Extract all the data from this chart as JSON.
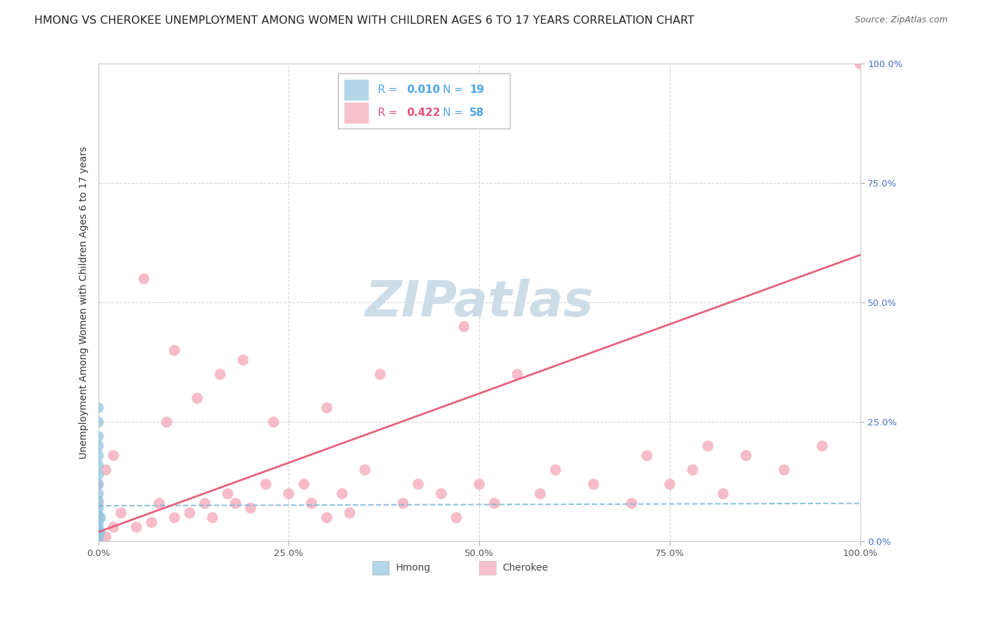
{
  "title": "HMONG VS CHEROKEE UNEMPLOYMENT AMONG WOMEN WITH CHILDREN AGES 6 TO 17 YEARS CORRELATION CHART",
  "source": "Source: ZipAtlas.com",
  "ylabel": "Unemployment Among Women with Children Ages 6 to 17 years",
  "xlim": [
    0,
    1
  ],
  "ylim": [
    0,
    1
  ],
  "xticks": [
    0.0,
    0.25,
    0.5,
    0.75,
    1.0
  ],
  "yticks": [
    0.0,
    0.25,
    0.5,
    0.75,
    1.0
  ],
  "xticklabels": [
    "0.0%",
    "25.0%",
    "50.0%",
    "75.0%",
    "100.0%"
  ],
  "yticklabels": [
    "0.0%",
    "25.0%",
    "50.0%",
    "75.0%",
    "100.0%"
  ],
  "hmong_color": "#92c5de",
  "cherokee_color": "#f4a6b8",
  "hmong_R": 0.01,
  "hmong_N": 19,
  "cherokee_R": 0.422,
  "cherokee_N": 58,
  "hmong_x": [
    0.0,
    0.0,
    0.0,
    0.0,
    0.0,
    0.0,
    0.0,
    0.0,
    0.0,
    0.0,
    0.0,
    0.0,
    0.0,
    0.0,
    0.0,
    0.0,
    0.0,
    0.002,
    0.003
  ],
  "hmong_y": [
    0.0,
    0.01,
    0.02,
    0.03,
    0.04,
    0.055,
    0.07,
    0.085,
    0.1,
    0.12,
    0.14,
    0.16,
    0.18,
    0.2,
    0.22,
    0.25,
    0.28,
    0.02,
    0.05
  ],
  "cherokee_x": [
    0.0,
    0.0,
    0.0,
    0.0,
    0.0,
    0.01,
    0.01,
    0.02,
    0.02,
    0.03,
    0.05,
    0.06,
    0.07,
    0.08,
    0.09,
    0.1,
    0.1,
    0.12,
    0.13,
    0.14,
    0.15,
    0.16,
    0.17,
    0.18,
    0.19,
    0.2,
    0.22,
    0.23,
    0.25,
    0.27,
    0.28,
    0.3,
    0.3,
    0.32,
    0.33,
    0.35,
    0.37,
    0.4,
    0.42,
    0.45,
    0.47,
    0.48,
    0.5,
    0.52,
    0.55,
    0.58,
    0.6,
    0.65,
    0.7,
    0.72,
    0.75,
    0.78,
    0.8,
    0.82,
    0.85,
    0.9,
    0.95,
    1.0
  ],
  "cherokee_y": [
    0.0,
    0.02,
    0.05,
    0.08,
    0.12,
    0.01,
    0.15,
    0.03,
    0.18,
    0.06,
    0.03,
    0.55,
    0.04,
    0.08,
    0.25,
    0.05,
    0.4,
    0.06,
    0.3,
    0.08,
    0.05,
    0.35,
    0.1,
    0.08,
    0.38,
    0.07,
    0.12,
    0.25,
    0.1,
    0.12,
    0.08,
    0.05,
    0.28,
    0.1,
    0.06,
    0.15,
    0.35,
    0.08,
    0.12,
    0.1,
    0.05,
    0.45,
    0.12,
    0.08,
    0.35,
    0.1,
    0.15,
    0.12,
    0.08,
    0.18,
    0.12,
    0.15,
    0.2,
    0.1,
    0.18,
    0.15,
    0.2,
    1.0
  ],
  "hmong_line_color": "#7ab8d4",
  "cherokee_line_color": "#e8607a",
  "hmong_line_intercept": 0.075,
  "hmong_line_slope": 0.005,
  "cherokee_line_intercept": 0.02,
  "cherokee_line_slope": 0.58,
  "watermark": "ZIPatlas",
  "watermark_color": "#ccdde8",
  "background_color": "#ffffff",
  "grid_color": "#d0d0d0",
  "title_fontsize": 11.5,
  "source_fontsize": 9,
  "axis_label_fontsize": 10,
  "tick_fontsize": 9.5,
  "legend_R_color_hmong": "#4da6e8",
  "legend_R_color_cherokee": "#e8507a",
  "legend_N_color": "#4da6e8",
  "bottom_legend_hmong": "Hmong",
  "bottom_legend_cherokee": "Cherokee"
}
